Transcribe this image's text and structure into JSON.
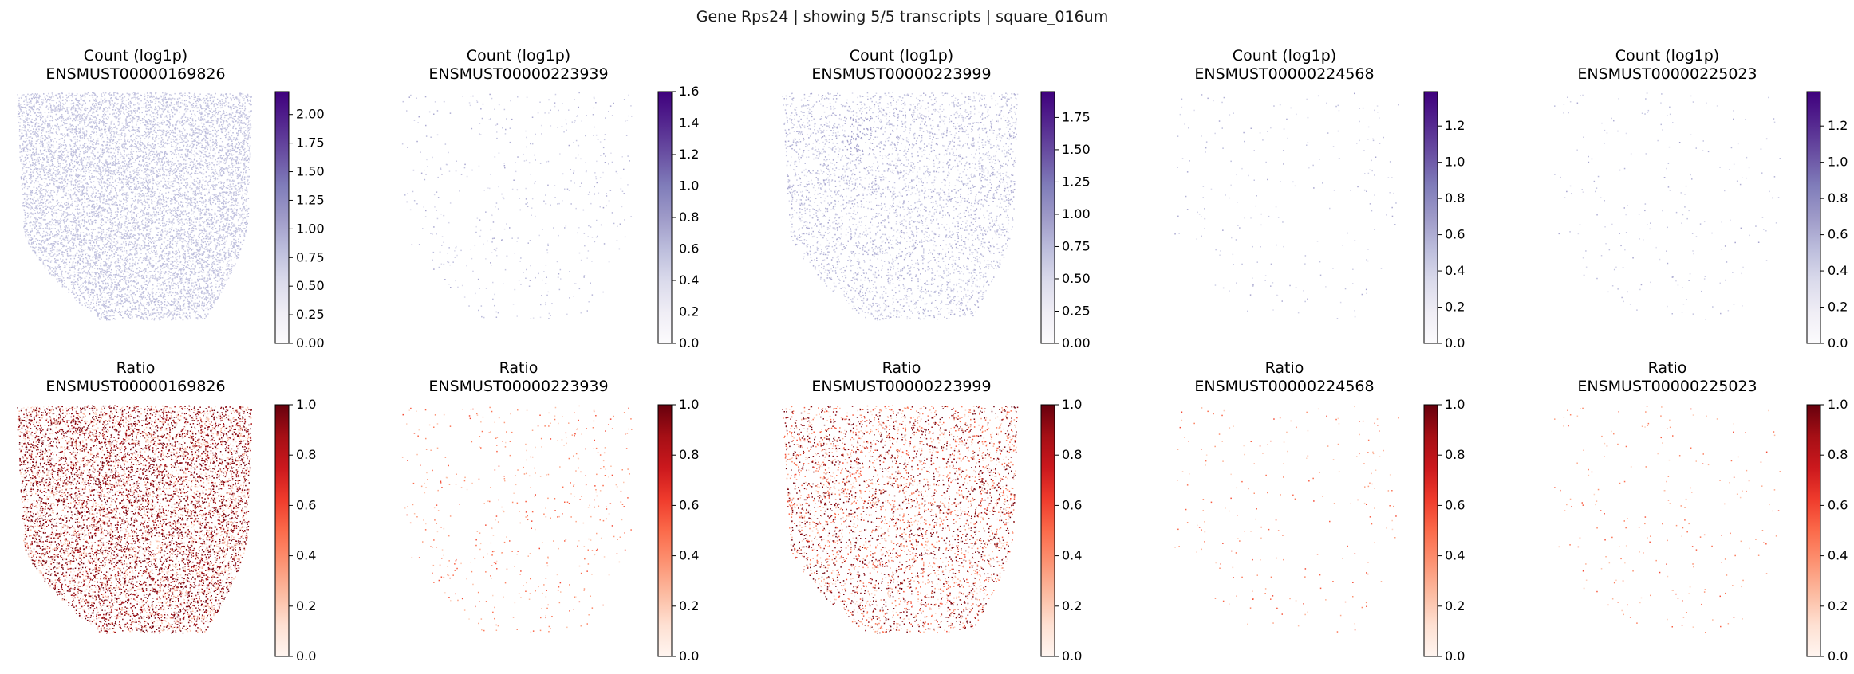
{
  "suptitle": "Gene Rps24 | showing 5/5 transcripts | square_016um",
  "colormaps": {
    "Purples": [
      "#fcfbfd",
      "#efedf5",
      "#dadaeb",
      "#bcbddc",
      "#9e9ac8",
      "#807dba",
      "#6a51a3",
      "#54278f",
      "#3f007d"
    ],
    "Reds": [
      "#fff5f0",
      "#fee0d2",
      "#fcbba1",
      "#fc9272",
      "#fb6a4a",
      "#ef3b2c",
      "#cb181d",
      "#a50f15",
      "#67000d"
    ]
  },
  "chart_data": [
    {
      "type": "scatter",
      "row": 0,
      "col": 0,
      "title": "Count (log1p)",
      "subtitle": "ENSMUST00000169826",
      "colormap": "Purples",
      "density": "high",
      "vmin": 0,
      "vmax": 2.2,
      "colorbar_ticks": [
        "0.00",
        "0.25",
        "0.50",
        "0.75",
        "1.00",
        "1.25",
        "1.50",
        "1.75",
        "2.00"
      ]
    },
    {
      "type": "scatter",
      "row": 0,
      "col": 1,
      "title": "Count (log1p)",
      "subtitle": "ENSMUST00000223939",
      "colormap": "Purples",
      "density": "low",
      "vmin": 0,
      "vmax": 1.6,
      "colorbar_ticks": [
        "0.0",
        "0.2",
        "0.4",
        "0.6",
        "0.8",
        "1.0",
        "1.2",
        "1.4",
        "1.6"
      ]
    },
    {
      "type": "scatter",
      "row": 0,
      "col": 2,
      "title": "Count (log1p)",
      "subtitle": "ENSMUST00000223999",
      "colormap": "Purples",
      "density": "medium",
      "vmin": 0,
      "vmax": 1.95,
      "colorbar_ticks": [
        "0.00",
        "0.25",
        "0.50",
        "0.75",
        "1.00",
        "1.25",
        "1.50",
        "1.75"
      ]
    },
    {
      "type": "scatter",
      "row": 0,
      "col": 3,
      "title": "Count (log1p)",
      "subtitle": "ENSMUST00000224568",
      "colormap": "Purples",
      "density": "very-low",
      "vmin": 0,
      "vmax": 1.39,
      "colorbar_ticks": [
        "0.0",
        "0.2",
        "0.4",
        "0.6",
        "0.8",
        "1.0",
        "1.2"
      ]
    },
    {
      "type": "scatter",
      "row": 0,
      "col": 4,
      "title": "Count (log1p)",
      "subtitle": "ENSMUST00000225023",
      "colormap": "Purples",
      "density": "very-low",
      "vmin": 0,
      "vmax": 1.39,
      "colorbar_ticks": [
        "0.0",
        "0.2",
        "0.4",
        "0.6",
        "0.8",
        "1.0",
        "1.2"
      ]
    },
    {
      "type": "scatter",
      "row": 1,
      "col": 0,
      "title": "Ratio",
      "subtitle": "ENSMUST00000169826",
      "colormap": "Reds",
      "density": "high",
      "vmin": 0,
      "vmax": 1.0,
      "colorbar_ticks": [
        "0.0",
        "0.2",
        "0.4",
        "0.6",
        "0.8",
        "1.0"
      ]
    },
    {
      "type": "scatter",
      "row": 1,
      "col": 1,
      "title": "Ratio",
      "subtitle": "ENSMUST00000223939",
      "colormap": "Reds",
      "density": "low",
      "vmin": 0,
      "vmax": 1.0,
      "colorbar_ticks": [
        "0.0",
        "0.2",
        "0.4",
        "0.6",
        "0.8",
        "1.0"
      ]
    },
    {
      "type": "scatter",
      "row": 1,
      "col": 2,
      "title": "Ratio",
      "subtitle": "ENSMUST00000223999",
      "colormap": "Reds",
      "density": "medium",
      "vmin": 0,
      "vmax": 1.0,
      "colorbar_ticks": [
        "0.0",
        "0.2",
        "0.4",
        "0.6",
        "0.8",
        "1.0"
      ]
    },
    {
      "type": "scatter",
      "row": 1,
      "col": 3,
      "title": "Ratio",
      "subtitle": "ENSMUST00000224568",
      "colormap": "Reds",
      "density": "very-low",
      "vmin": 0,
      "vmax": 1.0,
      "colorbar_ticks": [
        "0.0",
        "0.2",
        "0.4",
        "0.6",
        "0.8",
        "1.0"
      ]
    },
    {
      "type": "scatter",
      "row": 1,
      "col": 4,
      "title": "Ratio",
      "subtitle": "ENSMUST00000225023",
      "colormap": "Reds",
      "density": "very-low",
      "vmin": 0,
      "vmax": 1.0,
      "colorbar_ticks": [
        "0.0",
        "0.2",
        "0.4",
        "0.6",
        "0.8",
        "1.0"
      ]
    }
  ]
}
